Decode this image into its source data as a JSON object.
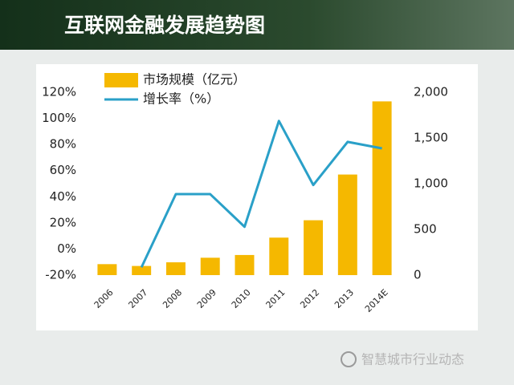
{
  "chart_data": {
    "title": "互联网金融发展趋势图",
    "type": "bar-line",
    "categories": [
      "2006",
      "2007",
      "2008",
      "2009",
      "2010",
      "2011",
      "2012",
      "2013",
      "2014E"
    ],
    "series": [
      {
        "name": "市场规模（亿元）",
        "type": "bar",
        "axis": "y2",
        "color": "#f5b800",
        "values": [
          120,
          100,
          140,
          190,
          220,
          410,
          600,
          1100,
          1900
        ]
      },
      {
        "name": "增长率（%）",
        "type": "line",
        "axis": "y",
        "color": "#2aa0c8",
        "values": [
          null,
          -14,
          42,
          42,
          17,
          98,
          49,
          82,
          77
        ]
      }
    ],
    "ylim": [
      -20,
      120
    ],
    "yticks": [
      {
        "value": -20,
        "label": "-20%"
      },
      {
        "value": 0,
        "label": "0%"
      },
      {
        "value": 20,
        "label": "20%"
      },
      {
        "value": 40,
        "label": "40%"
      },
      {
        "value": 60,
        "label": "60%"
      },
      {
        "value": 80,
        "label": "80%"
      },
      {
        "value": 100,
        "label": "100%"
      },
      {
        "value": 120,
        "label": "120%"
      }
    ],
    "y2lim": [
      0,
      2000
    ],
    "y2ticks": [
      0,
      500,
      {
        "value": 1000,
        "label": "1,000"
      },
      {
        "value": 1500,
        "label": "1,500"
      },
      {
        "value": 2000,
        "label": "2,000"
      }
    ],
    "legend": "top-left",
    "grid": false
  },
  "watermark": "智慧城市行业动态"
}
